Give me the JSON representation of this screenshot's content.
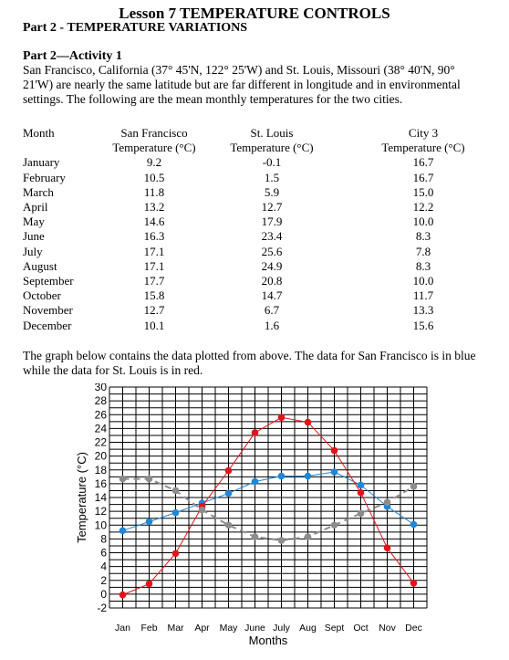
{
  "header": {
    "title": "Lesson 7 TEMPERATURE CONTROLS",
    "subtitle": "Part 2 - TEMPERATURE VARIATIONS"
  },
  "activity": {
    "heading": "Part 2—Activity 1",
    "intro": "San Francisco, California (37° 45'N, 122° 25'W) and St. Louis, Missouri (38° 40'N, 90° 21'W) are nearly the same latitude but are far different in longitude and in environmental settings. The following are the mean monthly temperatures for the two cities."
  },
  "table": {
    "col_month": "Month",
    "col_sf_1": "San Francisco",
    "col_sf_2": "Temperature (°C)",
    "col_sl_1": "St. Louis",
    "col_sl_2": "Temperature (°C)",
    "col_c3_1": "City 3",
    "col_c3_2": "Temperature (°C)",
    "months": [
      "January",
      "February",
      "March",
      "April",
      "May",
      "June",
      "July",
      "August",
      "September",
      "October",
      "November",
      "December"
    ],
    "sf": [
      "9.2",
      "10.5",
      "11.8",
      "13.2",
      "14.6",
      "16.3",
      "17.1",
      "17.1",
      "17.7",
      "15.8",
      "12.7",
      "10.1"
    ],
    "sl": [
      "-0.1",
      "1.5",
      "5.9",
      "12.7",
      "17.9",
      "23.4",
      "25.6",
      "24.9",
      "20.8",
      "14.7",
      "6.7",
      "1.6"
    ],
    "c3": [
      "16.7",
      "16.7",
      "15.0",
      "12.2",
      "10.0",
      "8.3",
      "7.8",
      "8.3",
      "10.0",
      "11.7",
      "13.3",
      "15.6"
    ]
  },
  "caption": "The graph below contains the data plotted from above. The data for San Francisco is in blue while the data for St. Louis is in red.",
  "chart_data": {
    "type": "line",
    "categories": [
      "Jan",
      "Feb",
      "Mar",
      "Apr",
      "May",
      "June",
      "July",
      "Aug",
      "Sept",
      "Oct",
      "Nov",
      "Dec"
    ],
    "xlabel": "Months",
    "ylabel": "Temperature (°C)",
    "ylim": [
      -2,
      30
    ],
    "yticks": [
      -2,
      0,
      2,
      4,
      6,
      8,
      10,
      12,
      14,
      16,
      18,
      20,
      22,
      24,
      26,
      28,
      30
    ],
    "grid": true,
    "series": [
      {
        "color": "#1f86d8",
        "values": [
          9.2,
          10.5,
          11.8,
          13.2,
          14.6,
          16.3,
          17.1,
          17.1,
          17.7,
          15.8,
          12.7,
          10.1
        ]
      },
      {
        "color": "#e3131b",
        "values": [
          -0.1,
          1.5,
          5.9,
          12.7,
          17.9,
          23.4,
          25.6,
          24.9,
          20.8,
          14.7,
          6.7,
          1.6
        ]
      },
      {
        "color": "#8c8c8c",
        "values": [
          16.7,
          16.7,
          15.0,
          12.2,
          10.0,
          8.3,
          7.8,
          8.3,
          10.0,
          11.7,
          13.3,
          15.6
        ]
      }
    ]
  }
}
